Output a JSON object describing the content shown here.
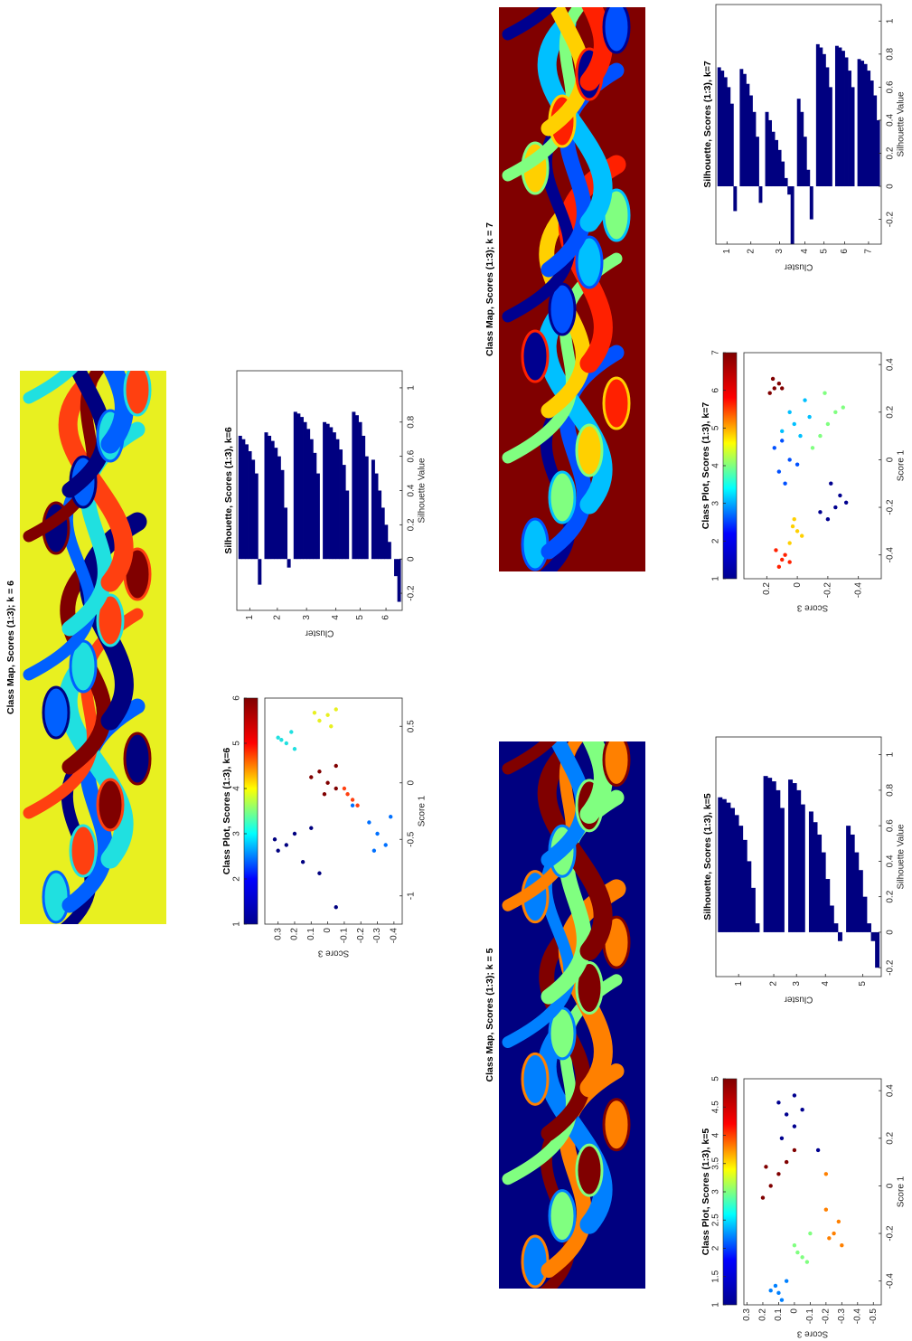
{
  "chart_data": [
    {
      "type": "image",
      "title": "Class Map, Scores (1:3); k = 6",
      "background": "#e8f020",
      "colors": [
        "#000080",
        "#0060ff",
        "#20e0e0",
        "#ff4010",
        "#800000"
      ]
    },
    {
      "type": "scatter",
      "title": "Class Plot, Scores (1:3), k=6",
      "xlabel": "Score 1",
      "ylabel": "Score 3",
      "xlim": [
        -1.25,
        0.75
      ],
      "xticks": [
        -1,
        -0.5,
        0,
        0.5
      ],
      "ylim": [
        -0.45,
        0.38
      ],
      "yticks": [
        -0.4,
        -0.3,
        -0.2,
        -0.1,
        0,
        0.1,
        0.2,
        0.3
      ],
      "colorbar_lim": [
        1,
        6
      ],
      "colorbar_ticks": [
        1,
        2,
        3,
        4,
        5,
        6
      ],
      "colorbar_colors": [
        "#00008f",
        "#0000ff",
        "#00ffff",
        "#ffff00",
        "#ff0000",
        "#800000"
      ],
      "series": [
        {
          "color": "#000080",
          "x": [
            -0.55,
            -0.6,
            -0.45,
            -0.7,
            -0.4,
            -1.1,
            -0.8,
            -0.5
          ],
          "y": [
            0.25,
            0.3,
            0.2,
            0.15,
            0.1,
            -0.05,
            0.05,
            0.32
          ]
        },
        {
          "color": "#0070ff",
          "x": [
            -0.45,
            -0.55,
            -0.35,
            -0.6,
            -0.3,
            -0.2
          ],
          "y": [
            -0.3,
            -0.35,
            -0.25,
            -0.28,
            -0.38,
            -0.15
          ]
        },
        {
          "color": "#20e0e0",
          "x": [
            0.35,
            0.4,
            0.3,
            0.45,
            0.38
          ],
          "y": [
            0.25,
            0.3,
            0.2,
            0.22,
            0.28
          ]
        },
        {
          "color": "#e8f020",
          "x": [
            0.6,
            0.55,
            0.65,
            0.5,
            0.62
          ],
          "y": [
            0.0,
            0.05,
            -0.05,
            -0.02,
            0.08
          ]
        },
        {
          "color": "#ff4010",
          "x": [
            -0.15,
            -0.1,
            -0.2,
            -0.05
          ],
          "y": [
            -0.15,
            -0.12,
            -0.18,
            -0.1
          ]
        },
        {
          "color": "#800000",
          "x": [
            0.0,
            0.1,
            -0.1,
            0.15,
            0.05,
            -0.05
          ],
          "y": [
            0.0,
            0.05,
            0.02,
            -0.05,
            0.1,
            -0.05
          ]
        }
      ]
    },
    {
      "type": "silhouette",
      "title": "Silhouette, Scores (1:3), k=6",
      "xlabel": "Silhouette Value",
      "ylabel": "Cluster",
      "color": "#000080",
      "xlim": [
        -0.3,
        1.1
      ],
      "xticks": [
        -0.2,
        0,
        0.2,
        0.4,
        0.6,
        0.8,
        1
      ],
      "clusters": [
        {
          "label": "1",
          "values": [
            0.72,
            0.7,
            0.67,
            0.63,
            0.58,
            0.5,
            -0.15
          ]
        },
        {
          "label": "2",
          "values": [
            0.74,
            0.72,
            0.69,
            0.65,
            0.6,
            0.52,
            0.3,
            -0.05
          ]
        },
        {
          "label": "3",
          "values": [
            0.86,
            0.85,
            0.83,
            0.8,
            0.76,
            0.7,
            0.62,
            0.5
          ]
        },
        {
          "label": "4",
          "values": [
            0.8,
            0.79,
            0.77,
            0.74,
            0.7,
            0.64,
            0.55,
            0.4
          ]
        },
        {
          "label": "5",
          "values": [
            0.86,
            0.84,
            0.8,
            0.72,
            0.6
          ]
        },
        {
          "label": "6",
          "values": [
            0.58,
            0.5,
            0.4,
            0.3,
            0.2,
            0.1,
            0,
            -0.1,
            -0.25
          ]
        }
      ]
    },
    {
      "type": "image",
      "title": "Class Map, Scores (1:3); k = 7",
      "background": "#800000",
      "colors": [
        "#00008f",
        "#0050ff",
        "#00c0ff",
        "#80ff80",
        "#ffd000",
        "#ff2000"
      ]
    },
    {
      "type": "scatter",
      "title": "Class Plot, Scores (1:3), k=7",
      "xlabel": "Score 1",
      "ylabel": "Score 3",
      "xlim": [
        -0.5,
        0.45
      ],
      "xticks": [
        -0.4,
        -0.2,
        0,
        0.2,
        0.4
      ],
      "ylim": [
        -0.55,
        0.35
      ],
      "yticks": [
        -0.4,
        -0.2,
        0,
        0.2
      ],
      "colorbar_lim": [
        1,
        7
      ],
      "colorbar_ticks": [
        1,
        2,
        3,
        4,
        5,
        6,
        7
      ],
      "colorbar_colors": [
        "#00008f",
        "#0000ff",
        "#00ffff",
        "#ffff00",
        "#ff0000",
        "#800000"
      ],
      "series": [
        {
          "color": "#00008f",
          "x": [
            -0.2,
            -0.15,
            -0.25,
            -0.18,
            -0.1,
            -0.22
          ],
          "y": [
            -0.25,
            -0.28,
            -0.2,
            -0.32,
            -0.22,
            -0.15
          ]
        },
        {
          "color": "#0050ff",
          "x": [
            -0.05,
            0,
            -0.1,
            0.05,
            -0.02,
            0.08
          ],
          "y": [
            0.12,
            0.05,
            0.08,
            0.15,
            0.0,
            0.1
          ]
        },
        {
          "color": "#00c0ff",
          "x": [
            0.15,
            0.2,
            0.1,
            0.12,
            0.25,
            0.18
          ],
          "y": [
            0.02,
            0.05,
            -0.02,
            0.1,
            -0.05,
            -0.08
          ]
        },
        {
          "color": "#80ff80",
          "x": [
            0.1,
            0.15,
            0.2,
            0.05,
            0.22,
            0.28
          ],
          "y": [
            -0.15,
            -0.2,
            -0.25,
            -0.1,
            -0.3,
            -0.18
          ]
        },
        {
          "color": "#ffd000",
          "x": [
            -0.3,
            -0.28,
            -0.32,
            -0.25,
            -0.35
          ],
          "y": [
            0.0,
            0.03,
            -0.03,
            0.02,
            0.05
          ]
        },
        {
          "color": "#ff2000",
          "x": [
            -0.42,
            -0.45,
            -0.4,
            -0.43,
            -0.38
          ],
          "y": [
            0.1,
            0.12,
            0.08,
            0.05,
            0.14
          ]
        },
        {
          "color": "#800000",
          "x": [
            0.3,
            0.32,
            0.28,
            0.34,
            0.3
          ],
          "y": [
            0.15,
            0.12,
            0.18,
            0.16,
            0.1
          ]
        }
      ]
    },
    {
      "type": "silhouette",
      "title": "Silhouette, Scores (1:3), k=7",
      "xlabel": "Silhouette Value",
      "ylabel": "Cluster",
      "color": "#000080",
      "xlim": [
        -0.35,
        1.1
      ],
      "xticks": [
        -0.2,
        0,
        0.2,
        0.4,
        0.6,
        0.8,
        1
      ],
      "clusters": [
        {
          "label": "1",
          "values": [
            0.72,
            0.7,
            0.66,
            0.6,
            0.5,
            -0.15
          ]
        },
        {
          "label": "2",
          "values": [
            0.71,
            0.68,
            0.62,
            0.55,
            0.45,
            0.3,
            -0.1
          ]
        },
        {
          "label": "3",
          "values": [
            0.45,
            0.4,
            0.33,
            0.28,
            0.22,
            0.15,
            0.05,
            -0.05,
            -0.35
          ]
        },
        {
          "label": "4",
          "values": [
            0.53,
            0.45,
            0.3,
            0.1,
            -0.2
          ]
        },
        {
          "label": "5",
          "values": [
            0.86,
            0.84,
            0.8,
            0.72,
            0.6
          ]
        },
        {
          "label": "6",
          "values": [
            0.85,
            0.84,
            0.82,
            0.78,
            0.7,
            0.6
          ]
        },
        {
          "label": "7",
          "values": [
            0.77,
            0.76,
            0.74,
            0.7,
            0.64,
            0.55,
            0.4
          ]
        }
      ]
    },
    {
      "type": "image",
      "title": "Class Map, Scores (1:3); k = 5",
      "background": "#000080",
      "colors": [
        "#800000",
        "#ff8000",
        "#0080ff",
        "#80ff80"
      ]
    },
    {
      "type": "scatter",
      "title": "Class Plot, Scores (1:3), k=5",
      "xlabel": "Score 1",
      "ylabel": "Score 3",
      "xlim": [
        -0.5,
        0.45
      ],
      "xticks": [
        -0.4,
        -0.2,
        0,
        0.2,
        0.4
      ],
      "ylim": [
        -0.55,
        0.32
      ],
      "yticks": [
        -0.5,
        -0.4,
        -0.3,
        -0.2,
        -0.1,
        0,
        0.1,
        0.2,
        0.3
      ],
      "colorbar_lim": [
        1,
        5
      ],
      "colorbar_ticks": [
        1,
        1.5,
        2,
        2.5,
        3,
        3.5,
        4,
        4.5,
        5
      ],
      "colorbar_colors": [
        "#00008f",
        "#0000ff",
        "#00ffff",
        "#ffff00",
        "#ff0000",
        "#800000"
      ],
      "series": [
        {
          "color": "#00008f",
          "x": [
            0.3,
            0.35,
            0.25,
            0.32,
            0.2,
            0.15,
            0.38
          ],
          "y": [
            0.05,
            0.1,
            0.0,
            -0.05,
            0.08,
            -0.15,
            0.0
          ]
        },
        {
          "color": "#0080ff",
          "x": [
            -0.45,
            -0.42,
            -0.48,
            -0.4,
            -0.44
          ],
          "y": [
            0.1,
            0.12,
            0.08,
            0.05,
            0.15
          ]
        },
        {
          "color": "#80ff80",
          "x": [
            -0.3,
            -0.28,
            -0.32,
            -0.25,
            -0.2
          ],
          "y": [
            -0.05,
            -0.02,
            -0.08,
            0.0,
            -0.1
          ]
        },
        {
          "color": "#ff8000",
          "x": [
            -0.2,
            -0.15,
            -0.22,
            -0.1,
            -0.25,
            0.05
          ],
          "y": [
            -0.25,
            -0.28,
            -0.22,
            -0.2,
            -0.3,
            -0.2
          ]
        },
        {
          "color": "#800000",
          "x": [
            0.05,
            0.0,
            0.1,
            -0.05,
            0.08,
            0.15
          ],
          "y": [
            0.1,
            0.15,
            0.05,
            0.2,
            0.18,
            0.0
          ]
        }
      ]
    },
    {
      "type": "silhouette",
      "title": "Silhouette, Scores (1:3), k=5",
      "xlabel": "Silhouette Value",
      "ylabel": "Cluster",
      "color": "#000080",
      "xlim": [
        -0.25,
        1.1
      ],
      "xticks": [
        -0.2,
        0,
        0.2,
        0.4,
        0.6,
        0.8,
        1
      ],
      "clusters": [
        {
          "label": "1",
          "values": [
            0.76,
            0.75,
            0.73,
            0.7,
            0.66,
            0.6,
            0.52,
            0.4,
            0.25,
            0.05
          ]
        },
        {
          "label": "2",
          "values": [
            0.88,
            0.87,
            0.85,
            0.8,
            0.7
          ]
        },
        {
          "label": "3",
          "values": [
            0.86,
            0.84,
            0.8,
            0.72
          ]
        },
        {
          "label": "4",
          "values": [
            0.68,
            0.62,
            0.55,
            0.45,
            0.3,
            0.15,
            0.05,
            -0.05
          ]
        },
        {
          "label": "5",
          "values": [
            0.6,
            0.55,
            0.45,
            0.35,
            0.2,
            0.05,
            -0.05,
            -0.2
          ]
        }
      ]
    }
  ]
}
